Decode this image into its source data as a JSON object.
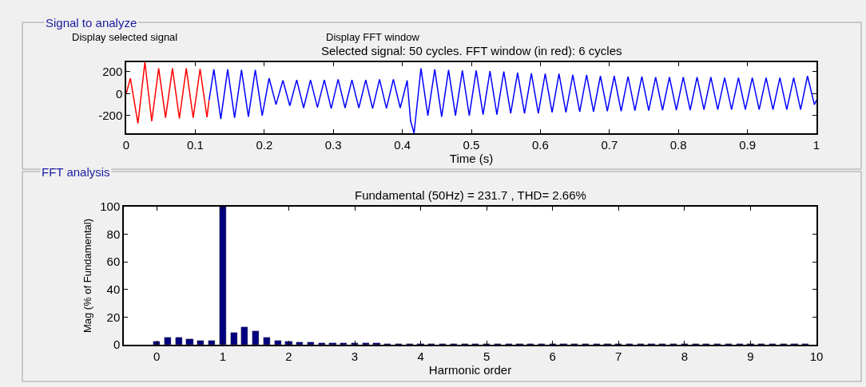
{
  "chart_data": [
    {
      "type": "line",
      "title": "Selected signal: 50 cycles. FFT window (in red): 6 cycles",
      "xlabel": "Time (s)",
      "annotations": [
        "Signal to analyze",
        "Display selected signal",
        "Display FFT window"
      ],
      "series": [
        {
          "color": "#ff0000",
          "x": [
            0,
            0.006,
            0.017,
            0.027,
            0.037,
            0.047,
            0.057,
            0.067,
            0.077,
            0.087,
            0.097,
            0.107,
            0.117,
            0.12
          ],
          "values": [
            0,
            140,
            -270,
            285,
            -250,
            230,
            -220,
            230,
            -225,
            230,
            -220,
            225,
            -215,
            -60
          ]
        },
        {
          "color": "#0000ff",
          "x": [
            0.12,
            0.127,
            0.137,
            0.147,
            0.157,
            0.167,
            0.177,
            0.187,
            0.197,
            0.207,
            0.217,
            0.227,
            0.237,
            0.247,
            0.257,
            0.267,
            0.277,
            0.287,
            0.297,
            0.307,
            0.317,
            0.327,
            0.337,
            0.347,
            0.357,
            0.367,
            0.377,
            0.387,
            0.397,
            0.407,
            0.412,
            0.417,
            0.427,
            0.437,
            0.447,
            0.457,
            0.467,
            0.477,
            0.487,
            0.497,
            0.507,
            0.517,
            0.527,
            0.537,
            0.547,
            0.557,
            0.567,
            0.577,
            0.587,
            0.597,
            0.607,
            0.617,
            0.627,
            0.637,
            0.647,
            0.657,
            0.667,
            0.677,
            0.687,
            0.697,
            0.707,
            0.717,
            0.727,
            0.737,
            0.747,
            0.757,
            0.767,
            0.777,
            0.787,
            0.797,
            0.807,
            0.817,
            0.827,
            0.837,
            0.847,
            0.857,
            0.867,
            0.877,
            0.887,
            0.897,
            0.907,
            0.917,
            0.927,
            0.937,
            0.947,
            0.957,
            0.967,
            0.977,
            0.987,
            0.997,
            1.0
          ],
          "values": [
            -60,
            220,
            -230,
            220,
            -220,
            215,
            -210,
            215,
            -200,
            140,
            -100,
            120,
            -110,
            125,
            -130,
            125,
            -125,
            125,
            -135,
            130,
            -130,
            125,
            -130,
            125,
            -135,
            130,
            -135,
            130,
            -130,
            120,
            -250,
            -360,
            230,
            -200,
            220,
            -210,
            215,
            -200,
            210,
            -200,
            210,
            -190,
            205,
            -190,
            200,
            -180,
            190,
            -180,
            185,
            -180,
            180,
            -170,
            180,
            -170,
            170,
            -165,
            170,
            -165,
            160,
            -160,
            160,
            -160,
            155,
            -155,
            155,
            -155,
            150,
            -150,
            150,
            -150,
            150,
            -150,
            150,
            -145,
            150,
            -145,
            145,
            -145,
            145,
            -145,
            145,
            -145,
            145,
            -145,
            145,
            -145,
            145,
            -145,
            160,
            -100,
            -60
          ]
        }
      ],
      "xlim": [
        0,
        1
      ],
      "xticks": [
        0,
        0.1,
        0.2,
        0.3,
        0.4,
        0.5,
        0.6,
        0.7,
        0.8,
        0.9,
        1
      ],
      "ylim": [
        -360,
        285
      ],
      "yticks": [
        -200,
        0,
        200
      ],
      "marker": "none",
      "line_style": "solid"
    },
    {
      "type": "bar",
      "title": "Fundamental (50Hz) = 231.7 , THD= 2.66%",
      "xlabel": "Harmonic order",
      "ylabel": "Mag (% of Fundamental)",
      "annotations": [
        "FFT analysis"
      ],
      "x": [
        0,
        0.167,
        0.333,
        0.5,
        0.667,
        0.833,
        1,
        1.167,
        1.333,
        1.5,
        1.667,
        1.833,
        2,
        2.167,
        2.333,
        2.5,
        2.667,
        2.833,
        3,
        3.167,
        3.333,
        3.5,
        3.667,
        3.833,
        4,
        4.167,
        4.333,
        4.5,
        4.667,
        4.833,
        5,
        5.167,
        5.333,
        5.5,
        5.667,
        5.833,
        6,
        6.167,
        6.333,
        6.5,
        6.667,
        6.833,
        7,
        7.167,
        7.333,
        7.5,
        7.667,
        7.833,
        8,
        8.167,
        8.333,
        8.5,
        8.667,
        8.833,
        9,
        9.167,
        9.333,
        9.5,
        9.667,
        9.833
      ],
      "values": [
        2.5,
        5,
        5,
        4,
        3,
        3,
        100,
        8.5,
        13,
        10,
        5,
        3,
        2.5,
        1.5,
        1.5,
        1,
        1,
        1,
        1,
        1,
        1,
        0.5,
        0.5,
        0.5,
        0.5,
        0.3,
        0.3,
        0.3,
        0.3,
        0.3,
        0.3,
        0.3,
        0.3,
        0.3,
        0.3,
        0.3,
        0.3,
        0.3,
        0.3,
        0.3,
        0.3,
        0.3,
        0.3,
        0.3,
        0.3,
        0.3,
        0.3,
        0.3,
        0.3,
        0.3,
        0.3,
        0.3,
        0.3,
        0.3,
        0.3,
        0.3,
        0.3,
        0.3,
        0.3,
        0.3
      ],
      "color": "#000080",
      "xlim": [
        -0.5,
        10
      ],
      "xticks": [
        0,
        1,
        2,
        3,
        4,
        5,
        6,
        7,
        8,
        9,
        10
      ],
      "ylim": [
        0,
        100
      ],
      "yticks": [
        0,
        20,
        40,
        60,
        80,
        100
      ]
    }
  ]
}
